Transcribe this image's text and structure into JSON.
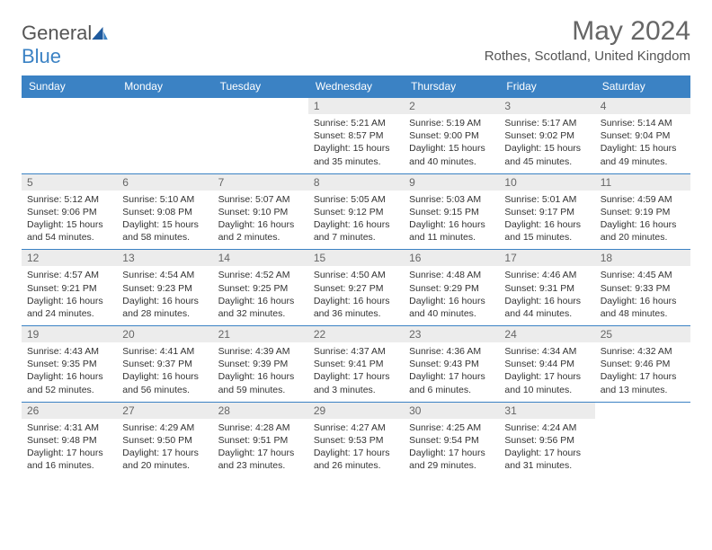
{
  "brand": {
    "part1": "General",
    "part2": "Blue"
  },
  "title": "May 2024",
  "location": "Rothes, Scotland, United Kingdom",
  "colors": {
    "accent": "#3b82c4",
    "dayHeaderBg": "#ececec",
    "text": "#333",
    "soft": "#666"
  },
  "weekdays": [
    "Sunday",
    "Monday",
    "Tuesday",
    "Wednesday",
    "Thursday",
    "Friday",
    "Saturday"
  ],
  "weeks": [
    [
      null,
      null,
      null,
      {
        "n": "1",
        "sr": "Sunrise: 5:21 AM",
        "ss": "Sunset: 8:57 PM",
        "d1": "Daylight: 15 hours",
        "d2": "and 35 minutes."
      },
      {
        "n": "2",
        "sr": "Sunrise: 5:19 AM",
        "ss": "Sunset: 9:00 PM",
        "d1": "Daylight: 15 hours",
        "d2": "and 40 minutes."
      },
      {
        "n": "3",
        "sr": "Sunrise: 5:17 AM",
        "ss": "Sunset: 9:02 PM",
        "d1": "Daylight: 15 hours",
        "d2": "and 45 minutes."
      },
      {
        "n": "4",
        "sr": "Sunrise: 5:14 AM",
        "ss": "Sunset: 9:04 PM",
        "d1": "Daylight: 15 hours",
        "d2": "and 49 minutes."
      }
    ],
    [
      {
        "n": "5",
        "sr": "Sunrise: 5:12 AM",
        "ss": "Sunset: 9:06 PM",
        "d1": "Daylight: 15 hours",
        "d2": "and 54 minutes."
      },
      {
        "n": "6",
        "sr": "Sunrise: 5:10 AM",
        "ss": "Sunset: 9:08 PM",
        "d1": "Daylight: 15 hours",
        "d2": "and 58 minutes."
      },
      {
        "n": "7",
        "sr": "Sunrise: 5:07 AM",
        "ss": "Sunset: 9:10 PM",
        "d1": "Daylight: 16 hours",
        "d2": "and 2 minutes."
      },
      {
        "n": "8",
        "sr": "Sunrise: 5:05 AM",
        "ss": "Sunset: 9:12 PM",
        "d1": "Daylight: 16 hours",
        "d2": "and 7 minutes."
      },
      {
        "n": "9",
        "sr": "Sunrise: 5:03 AM",
        "ss": "Sunset: 9:15 PM",
        "d1": "Daylight: 16 hours",
        "d2": "and 11 minutes."
      },
      {
        "n": "10",
        "sr": "Sunrise: 5:01 AM",
        "ss": "Sunset: 9:17 PM",
        "d1": "Daylight: 16 hours",
        "d2": "and 15 minutes."
      },
      {
        "n": "11",
        "sr": "Sunrise: 4:59 AM",
        "ss": "Sunset: 9:19 PM",
        "d1": "Daylight: 16 hours",
        "d2": "and 20 minutes."
      }
    ],
    [
      {
        "n": "12",
        "sr": "Sunrise: 4:57 AM",
        "ss": "Sunset: 9:21 PM",
        "d1": "Daylight: 16 hours",
        "d2": "and 24 minutes."
      },
      {
        "n": "13",
        "sr": "Sunrise: 4:54 AM",
        "ss": "Sunset: 9:23 PM",
        "d1": "Daylight: 16 hours",
        "d2": "and 28 minutes."
      },
      {
        "n": "14",
        "sr": "Sunrise: 4:52 AM",
        "ss": "Sunset: 9:25 PM",
        "d1": "Daylight: 16 hours",
        "d2": "and 32 minutes."
      },
      {
        "n": "15",
        "sr": "Sunrise: 4:50 AM",
        "ss": "Sunset: 9:27 PM",
        "d1": "Daylight: 16 hours",
        "d2": "and 36 minutes."
      },
      {
        "n": "16",
        "sr": "Sunrise: 4:48 AM",
        "ss": "Sunset: 9:29 PM",
        "d1": "Daylight: 16 hours",
        "d2": "and 40 minutes."
      },
      {
        "n": "17",
        "sr": "Sunrise: 4:46 AM",
        "ss": "Sunset: 9:31 PM",
        "d1": "Daylight: 16 hours",
        "d2": "and 44 minutes."
      },
      {
        "n": "18",
        "sr": "Sunrise: 4:45 AM",
        "ss": "Sunset: 9:33 PM",
        "d1": "Daylight: 16 hours",
        "d2": "and 48 minutes."
      }
    ],
    [
      {
        "n": "19",
        "sr": "Sunrise: 4:43 AM",
        "ss": "Sunset: 9:35 PM",
        "d1": "Daylight: 16 hours",
        "d2": "and 52 minutes."
      },
      {
        "n": "20",
        "sr": "Sunrise: 4:41 AM",
        "ss": "Sunset: 9:37 PM",
        "d1": "Daylight: 16 hours",
        "d2": "and 56 minutes."
      },
      {
        "n": "21",
        "sr": "Sunrise: 4:39 AM",
        "ss": "Sunset: 9:39 PM",
        "d1": "Daylight: 16 hours",
        "d2": "and 59 minutes."
      },
      {
        "n": "22",
        "sr": "Sunrise: 4:37 AM",
        "ss": "Sunset: 9:41 PM",
        "d1": "Daylight: 17 hours",
        "d2": "and 3 minutes."
      },
      {
        "n": "23",
        "sr": "Sunrise: 4:36 AM",
        "ss": "Sunset: 9:43 PM",
        "d1": "Daylight: 17 hours",
        "d2": "and 6 minutes."
      },
      {
        "n": "24",
        "sr": "Sunrise: 4:34 AM",
        "ss": "Sunset: 9:44 PM",
        "d1": "Daylight: 17 hours",
        "d2": "and 10 minutes."
      },
      {
        "n": "25",
        "sr": "Sunrise: 4:32 AM",
        "ss": "Sunset: 9:46 PM",
        "d1": "Daylight: 17 hours",
        "d2": "and 13 minutes."
      }
    ],
    [
      {
        "n": "26",
        "sr": "Sunrise: 4:31 AM",
        "ss": "Sunset: 9:48 PM",
        "d1": "Daylight: 17 hours",
        "d2": "and 16 minutes."
      },
      {
        "n": "27",
        "sr": "Sunrise: 4:29 AM",
        "ss": "Sunset: 9:50 PM",
        "d1": "Daylight: 17 hours",
        "d2": "and 20 minutes."
      },
      {
        "n": "28",
        "sr": "Sunrise: 4:28 AM",
        "ss": "Sunset: 9:51 PM",
        "d1": "Daylight: 17 hours",
        "d2": "and 23 minutes."
      },
      {
        "n": "29",
        "sr": "Sunrise: 4:27 AM",
        "ss": "Sunset: 9:53 PM",
        "d1": "Daylight: 17 hours",
        "d2": "and 26 minutes."
      },
      {
        "n": "30",
        "sr": "Sunrise: 4:25 AM",
        "ss": "Sunset: 9:54 PM",
        "d1": "Daylight: 17 hours",
        "d2": "and 29 minutes."
      },
      {
        "n": "31",
        "sr": "Sunrise: 4:24 AM",
        "ss": "Sunset: 9:56 PM",
        "d1": "Daylight: 17 hours",
        "d2": "and 31 minutes."
      },
      null
    ]
  ]
}
